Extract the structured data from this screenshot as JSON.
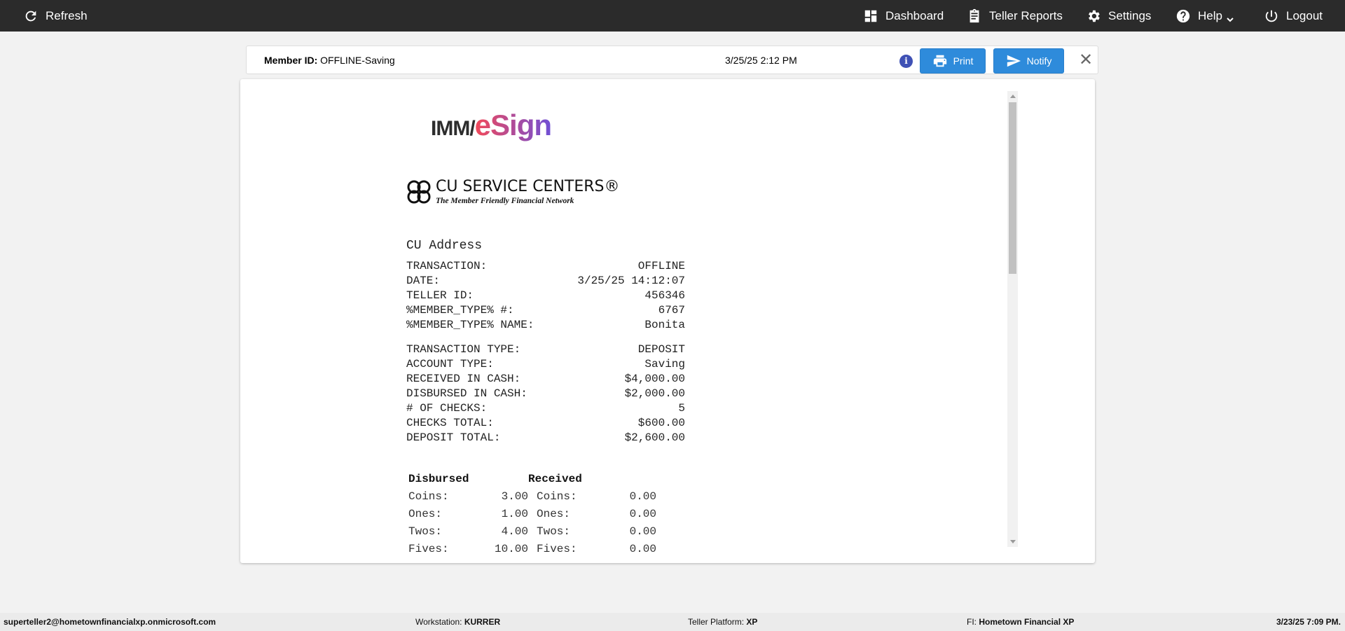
{
  "topbar": {
    "refresh": "Refresh",
    "dashboard": "Dashboard",
    "teller_reports": "Teller Reports",
    "settings": "Settings",
    "help": "Help",
    "logout": "Logout"
  },
  "header": {
    "member_id_label": "Member ID:",
    "member_id": "OFFLINE-Saving",
    "datetime": "3/25/25 2:12 PM",
    "print": "Print",
    "notify": "Notify"
  },
  "receipt": {
    "logo_text": "IMM/eSign",
    "cu_logo": {
      "name": "CU SERVICE CENTERS®",
      "tagline": "The Member Friendly Financial Network"
    },
    "address": "CU Address",
    "lines1": [
      [
        "TRANSACTION:",
        "OFFLINE"
      ],
      [
        "DATE:",
        "3/25/25 14:12:07"
      ],
      [
        "TELLER ID:",
        "456346"
      ],
      [
        "%MEMBER_TYPE% #:",
        "6767"
      ],
      [
        "%MEMBER_TYPE% NAME:",
        "Bonita"
      ]
    ],
    "lines2": [
      [
        "TRANSACTION TYPE:",
        "DEPOSIT"
      ],
      [
        "ACCOUNT TYPE:",
        "Saving"
      ],
      [
        "RECEIVED IN CASH:",
        "$4,000.00"
      ],
      [
        "DISBURSED IN CASH:",
        "$2,000.00"
      ],
      [
        "# OF CHECKS:",
        "5"
      ],
      [
        "CHECKS TOTAL:",
        "$600.00"
      ],
      [
        "DEPOSIT TOTAL:",
        "$2,600.00"
      ]
    ],
    "denoms": {
      "disbursed_label": "Disbursed",
      "received_label": "Received",
      "rows": [
        [
          "Coins:",
          "3.00",
          "Coins:",
          "0.00"
        ],
        [
          "Ones:",
          "1.00",
          "Ones:",
          "0.00"
        ],
        [
          "Twos:",
          "4.00",
          "Twos:",
          "0.00"
        ],
        [
          "Fives:",
          "10.00",
          "Fives:",
          "0.00"
        ]
      ]
    }
  },
  "footer": {
    "user": "superteller2@hometownfinancialxp.onmicrosoft.com",
    "workstation_label": "Workstation:",
    "workstation": "KURRER",
    "platform_label": "Teller Platform:",
    "platform": "XP",
    "fi_label": "FI:",
    "fi": "Hometown Financial XP",
    "datetime": "3/23/25 7:09 PM."
  }
}
